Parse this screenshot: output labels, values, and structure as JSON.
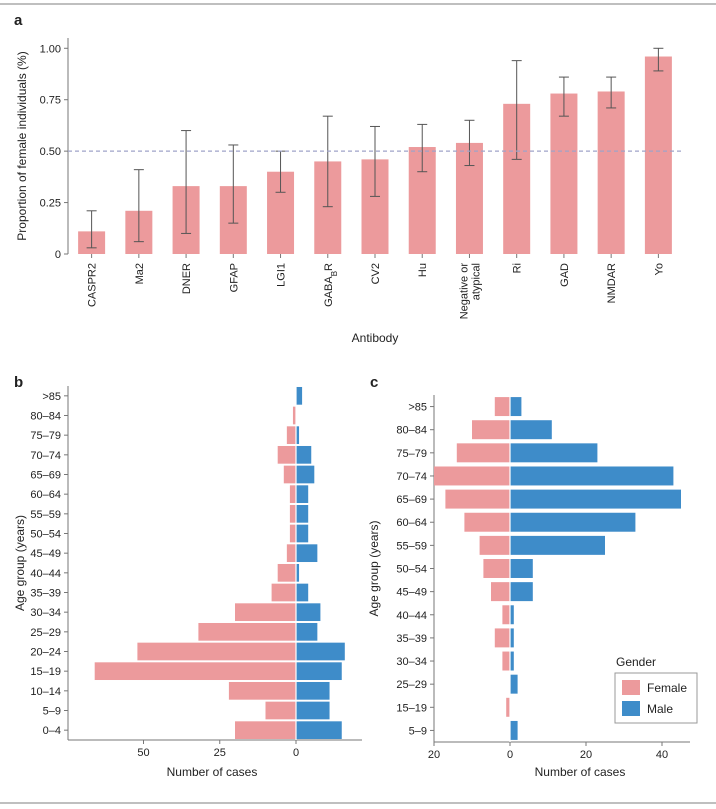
{
  "colors": {
    "female": "#EC9A9C",
    "male": "#3E8CC9",
    "errorbar": "#555555",
    "refline": "#9FA3C8",
    "axis": "#777777",
    "rule": "#AAAAAA"
  },
  "chart_data": [
    {
      "panel": "a",
      "type": "bar",
      "categories": [
        "CASPR2",
        "Ma2",
        "DNER",
        "GFAP",
        "LGI1",
        "GABABR",
        "CV2",
        "Hu",
        "Negative or atypical",
        "Ri",
        "GAD",
        "NMDAR",
        "Yo"
      ],
      "category_lines": [
        [
          "CASPR2"
        ],
        [
          "Ma2"
        ],
        [
          "DNER"
        ],
        [
          "GFAP"
        ],
        [
          "LGI1"
        ],
        [
          "GABA",
          "B",
          "R"
        ],
        [
          "CV2"
        ],
        [
          "Hu"
        ],
        [
          "Negative or",
          "atypical"
        ],
        [
          "Ri"
        ],
        [
          "GAD"
        ],
        [
          "NMDAR"
        ],
        [
          "Yo"
        ]
      ],
      "values": [
        0.11,
        0.21,
        0.33,
        0.33,
        0.4,
        0.45,
        0.46,
        0.52,
        0.54,
        0.73,
        0.78,
        0.79,
        0.96
      ],
      "err_low": [
        0.03,
        0.06,
        0.1,
        0.15,
        0.3,
        0.23,
        0.28,
        0.4,
        0.43,
        0.46,
        0.67,
        0.71,
        0.89
      ],
      "err_high": [
        0.21,
        0.41,
        0.6,
        0.53,
        0.5,
        0.67,
        0.62,
        0.63,
        0.65,
        0.94,
        0.86,
        0.86,
        1.0
      ],
      "reference_line": 0.5,
      "ylim": [
        0,
        1.05
      ],
      "yticks": [
        "0",
        "0.25",
        "0.50",
        "0.75",
        "1.00"
      ],
      "ylabel": "Proportion of female individuals (%)",
      "xlabel": "Antibody"
    },
    {
      "panel": "b",
      "type": "bar",
      "orientation": "population-pyramid",
      "categories": [
        "0–4",
        "5–9",
        "10–14",
        "15–19",
        "20–24",
        "25–29",
        "30–34",
        "35–39",
        "40–44",
        "45–49",
        "50–54",
        "55–59",
        "60–64",
        "65–69",
        "70–74",
        "75–79",
        "80–84",
        ">85"
      ],
      "series": [
        {
          "name": "Female",
          "values": [
            20,
            10,
            22,
            66,
            52,
            32,
            20,
            8,
            6,
            3,
            2,
            2,
            2,
            4,
            6,
            3,
            1,
            0
          ]
        },
        {
          "name": "Male",
          "values": [
            15,
            11,
            11,
            15,
            16,
            7,
            8,
            4,
            1,
            7,
            4,
            4,
            4,
            6,
            5,
            1,
            0,
            2
          ]
        }
      ],
      "xlim": [
        -70,
        18
      ],
      "xticks": [
        "50",
        "25",
        "0"
      ],
      "xlabel": "Number of cases",
      "ylabel": "Age group (years)"
    },
    {
      "panel": "c",
      "type": "bar",
      "orientation": "population-pyramid",
      "categories": [
        "5–9",
        "15–19",
        "25–29",
        "30–34",
        "35–39",
        "40–44",
        "45–49",
        "50–54",
        "55–59",
        "60–64",
        "65–69",
        "70–74",
        "75–79",
        "80–84",
        ">85"
      ],
      "series": [
        {
          "name": "Female",
          "values": [
            0,
            1,
            0,
            2,
            4,
            2,
            5,
            7,
            8,
            12,
            17,
            20,
            14,
            10,
            4
          ]
        },
        {
          "name": "Male",
          "values": [
            2,
            0,
            2,
            1,
            1,
            1,
            6,
            6,
            25,
            33,
            45,
            43,
            23,
            11,
            3
          ]
        }
      ],
      "xlim": [
        -20,
        47
      ],
      "xticks": [
        "20",
        "0",
        "20",
        "40"
      ],
      "xlabel": "Number of cases",
      "ylabel": "Age group (years)",
      "legend": {
        "title": "Gender",
        "items": [
          "Female",
          "Male"
        ],
        "position": "bottom-right"
      }
    }
  ],
  "panel_letters": {
    "a": "a",
    "b": "b",
    "c": "c"
  }
}
